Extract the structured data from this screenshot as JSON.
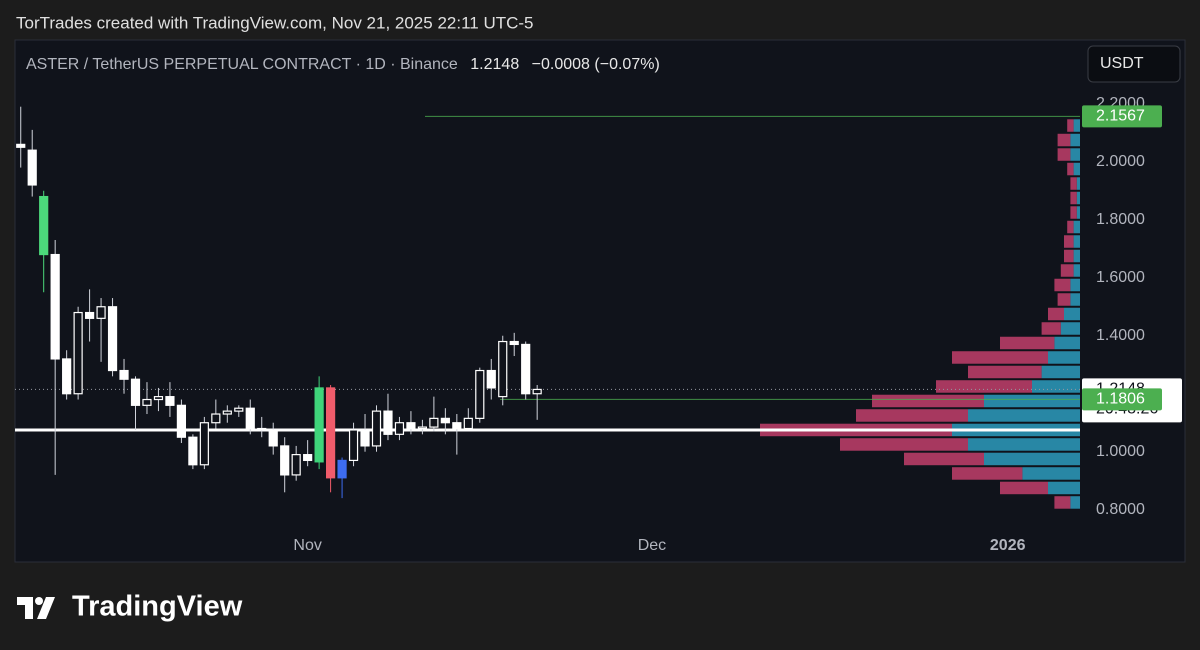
{
  "header": "TorTrades created with TradingView.com, Nov 21, 2025 22:11 UTC-5",
  "brand": "TradingView",
  "chart_data": {
    "type": "candlestick",
    "title": "ASTER / TetherUS PERPETUAL CONTRACT · 1D · Binance",
    "last_price": 1.2148,
    "change": "−0.0008 (−0.07%)",
    "currency": "USDT",
    "countdown": "20:48:26",
    "open": [
      2.06,
      2.04,
      1.88,
      1.68,
      1.32,
      1.2,
      1.48,
      1.46,
      1.5,
      1.28,
      1.25,
      1.16,
      1.18,
      1.19,
      1.16,
      1.05,
      0.955,
      1.1,
      1.13,
      1.14,
      1.15,
      1.08,
      1.075,
      1.02,
      0.92,
      0.99,
      0.965,
      1.22,
      0.91,
      0.97,
      1.075,
      1.02,
      1.14,
      1.06,
      1.1,
      1.08,
      1.085,
      1.115,
      1.1,
      1.08,
      1.115,
      1.28,
      1.19,
      1.38,
      1.37,
      1.2
    ],
    "high": [
      2.19,
      2.11,
      1.9,
      1.73,
      1.35,
      1.5,
      1.56,
      1.53,
      1.53,
      1.32,
      1.26,
      1.24,
      1.22,
      1.24,
      1.18,
      1.06,
      1.12,
      1.18,
      1.16,
      1.16,
      1.18,
      1.12,
      1.1,
      1.05,
      1.02,
      1.04,
      1.26,
      1.23,
      0.98,
      1.1,
      1.13,
      1.16,
      1.2,
      1.12,
      1.14,
      1.11,
      1.19,
      1.15,
      1.13,
      1.15,
      1.29,
      1.32,
      1.4,
      1.41,
      1.38,
      1.23
    ],
    "low": [
      1.98,
      1.88,
      1.55,
      0.92,
      1.18,
      1.18,
      1.38,
      1.31,
      1.26,
      1.2,
      1.075,
      1.13,
      1.14,
      1.12,
      1.03,
      0.94,
      0.94,
      1.08,
      1.1,
      1.12,
      1.06,
      1.05,
      0.99,
      0.86,
      0.9,
      0.95,
      0.94,
      0.86,
      0.84,
      0.95,
      1.0,
      1.0,
      1.04,
      1.04,
      1.06,
      1.06,
      1.07,
      1.06,
      0.99,
      1.09,
      1.1,
      1.18,
      1.16,
      1.33,
      1.18,
      1.11
    ],
    "close": [
      2.05,
      1.92,
      1.68,
      1.32,
      1.2,
      1.48,
      1.46,
      1.5,
      1.28,
      1.25,
      1.16,
      1.18,
      1.19,
      1.16,
      1.05,
      0.955,
      1.1,
      1.13,
      1.14,
      1.15,
      1.08,
      1.075,
      1.02,
      0.92,
      0.99,
      0.97,
      1.22,
      0.91,
      0.97,
      1.075,
      1.02,
      1.14,
      1.06,
      1.1,
      1.08,
      1.085,
      1.115,
      1.1,
      1.08,
      1.115,
      1.28,
      1.22,
      1.38,
      1.37,
      1.2,
      1.2148
    ],
    "colors": [
      "#ffffff",
      "#ffffff",
      "#4cd97b",
      "#ffffff",
      "#ffffff",
      "#ffffff",
      "#ffffff",
      "#ffffff",
      "#ffffff",
      "#ffffff",
      "#ffffff",
      "#ffffff",
      "#ffffff",
      "#ffffff",
      "#ffffff",
      "#ffffff",
      "#ffffff",
      "#ffffff",
      "#ffffff",
      "#ffffff",
      "#ffffff",
      "#ffffff",
      "#ffffff",
      "#ffffff",
      "#ffffff",
      "#ffffff",
      "#3fd47a",
      "#f05c6b",
      "#3d6cf0",
      "#ffffff",
      "#ffffff",
      "#ffffff",
      "#ffffff",
      "#ffffff",
      "#ffffff",
      "#ffffff",
      "#ffffff",
      "#ffffff",
      "#ffffff",
      "#ffffff",
      "#ffffff",
      "#ffffff",
      "#ffffff",
      "#ffffff",
      "#ffffff",
      "#ffffff"
    ],
    "xlim": [
      -0.5,
      92.3
    ],
    "xticks": [
      {
        "value": 25,
        "label": "Nov"
      },
      {
        "value": 55,
        "label": "Dec"
      },
      {
        "value": 86,
        "label": "2026"
      }
    ],
    "ylim": [
      0.73,
      2.42
    ],
    "yticks": [
      {
        "value": 0.8,
        "label": "0.8000"
      },
      {
        "value": 1.0,
        "label": "1.0000"
      },
      {
        "value": 1.2,
        "label": "1.2000"
      },
      {
        "value": 1.4,
        "label": "1.4000"
      },
      {
        "value": 1.6,
        "label": "1.6000"
      },
      {
        "value": 1.8,
        "label": "1.8000"
      },
      {
        "value": 2.0,
        "label": "2.0000"
      },
      {
        "value": 2.2,
        "label": "2.2000"
      }
    ],
    "poc": 1.075,
    "price_lines": [
      {
        "value": 2.1567,
        "color": "#4caf50"
      },
      {
        "value": 1.1806,
        "color": "#4caf50"
      }
    ],
    "volume_profile": {
      "step": 0.05,
      "levels": [
        0.825,
        0.875,
        0.925,
        0.975,
        1.025,
        1.075,
        1.125,
        1.175,
        1.225,
        1.275,
        1.325,
        1.375,
        1.425,
        1.475,
        1.525,
        1.575,
        1.625,
        1.675,
        1.725,
        1.775,
        1.825,
        1.875,
        1.925,
        1.975,
        2.025,
        2.075,
        2.125
      ],
      "up": [
        3,
        10,
        18,
        30,
        35,
        40,
        35,
        30,
        15,
        12,
        10,
        8,
        6,
        5,
        3,
        3,
        2,
        2,
        2,
        2,
        1,
        1,
        1,
        2,
        3,
        3,
        2
      ],
      "down": [
        5,
        15,
        22,
        25,
        40,
        60,
        35,
        35,
        30,
        23,
        30,
        17,
        6,
        5,
        4,
        5,
        4,
        3,
        3,
        2,
        2,
        2,
        2,
        2,
        4,
        4,
        2
      ],
      "up_color": "#2d9cbd",
      "down_color": "#c2406b"
    }
  }
}
